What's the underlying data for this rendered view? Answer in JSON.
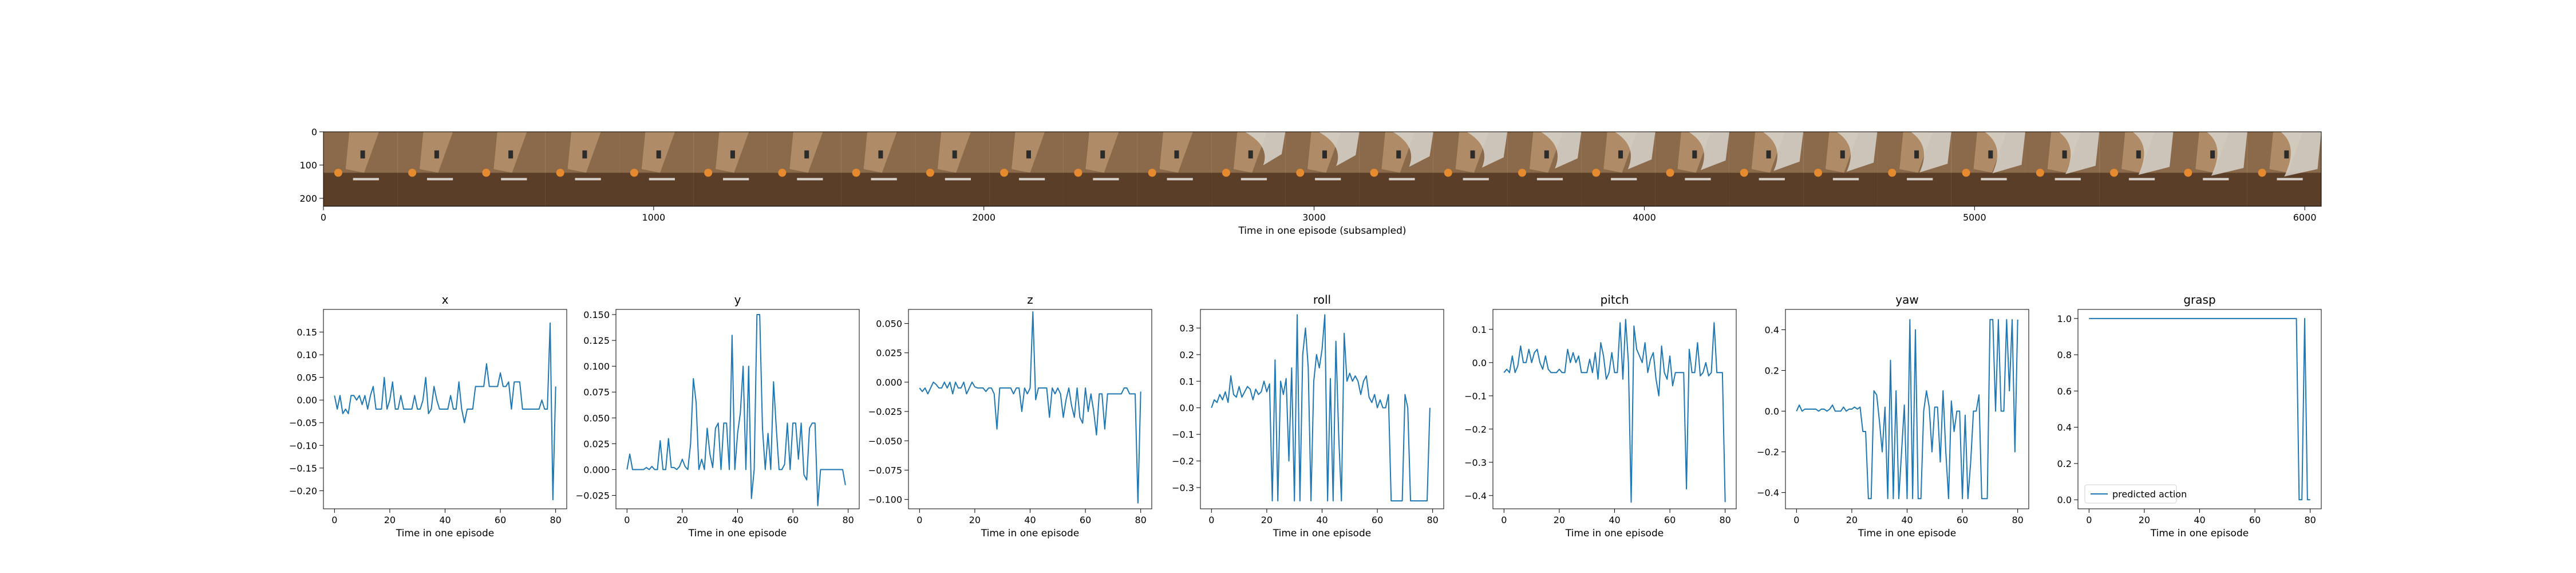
{
  "colors": {
    "series": "#1f77b4",
    "axes": "#000000",
    "legend_border": "#cccccc"
  },
  "filmstrip": {
    "xlabel": "Time in one episode (subsampled)",
    "xticks": [
      0,
      1000,
      2000,
      3000,
      4000,
      5000,
      6000
    ],
    "yticks": [
      0,
      100,
      200
    ],
    "xlim": [
      0,
      6050
    ],
    "ylim": [
      0,
      224
    ],
    "frame_count": 27,
    "frame_palette": [
      "#8a6a4a",
      "#5b3e27",
      "#c9a27c",
      "#e58a2e",
      "#2b2b2b",
      "#d8d3cc"
    ]
  },
  "chart_data": [
    {
      "type": "line",
      "title": "x",
      "xlabel": "Time in one episode",
      "xlim": [
        -4,
        84
      ],
      "ylim": [
        -0.24,
        0.2
      ],
      "xticks": [
        0,
        20,
        40,
        60,
        80
      ],
      "yticks": [
        -0.2,
        -0.15,
        -0.1,
        -0.05,
        0.0,
        0.05,
        0.1,
        0.15
      ],
      "ytick_labels": [
        "−0.20",
        "−0.15",
        "−0.10",
        "−0.05",
        "0.00",
        "0.05",
        "0.10",
        "0.15"
      ],
      "y": [
        0.01,
        -0.02,
        0.01,
        -0.03,
        -0.02,
        -0.03,
        0.01,
        0.01,
        0.0,
        0.01,
        -0.01,
        0.01,
        -0.02,
        0.01,
        0.03,
        -0.02,
        -0.02,
        -0.02,
        0.05,
        -0.02,
        0.0,
        0.04,
        -0.02,
        -0.02,
        0.01,
        -0.02,
        -0.02,
        -0.02,
        -0.02,
        0.01,
        -0.02,
        -0.02,
        0.0,
        0.05,
        -0.03,
        -0.02,
        0.03,
        0.0,
        -0.02,
        -0.02,
        -0.02,
        -0.02,
        0.01,
        -0.02,
        -0.02,
        0.04,
        -0.02,
        -0.05,
        -0.02,
        -0.02,
        -0.02,
        0.03,
        0.03,
        0.03,
        0.03,
        0.08,
        0.03,
        0.03,
        0.03,
        0.03,
        0.06,
        0.03,
        0.03,
        0.04,
        -0.02,
        0.04,
        0.04,
        0.04,
        -0.02,
        -0.02,
        -0.02,
        -0.02,
        -0.02,
        -0.02,
        -0.02,
        0.0,
        -0.02,
        -0.02,
        0.17,
        -0.22,
        0.03
      ]
    },
    {
      "type": "line",
      "title": "y",
      "xlabel": "Time in one episode",
      "xlim": [
        -4,
        84
      ],
      "ylim": [
        -0.038,
        0.155
      ],
      "xticks": [
        0,
        20,
        40,
        60,
        80
      ],
      "yticks": [
        -0.025,
        0.0,
        0.025,
        0.05,
        0.075,
        0.1,
        0.125,
        0.15
      ],
      "ytick_labels": [
        "−0.025",
        "0.000",
        "0.025",
        "0.050",
        "0.075",
        "0.100",
        "0.125",
        "0.150"
      ],
      "y": [
        0.0,
        0.015,
        0.0,
        0.0,
        0.0,
        0.0,
        0.0,
        0.002,
        0.0,
        0.003,
        0.0,
        0.0,
        0.028,
        0.0,
        0.0,
        0.03,
        0.002,
        0.002,
        0.0,
        0.003,
        0.01,
        0.003,
        0.0,
        0.025,
        0.088,
        0.065,
        0.0,
        0.01,
        0.0,
        0.04,
        0.015,
        0.002,
        0.04,
        0.045,
        0.0,
        0.045,
        0.045,
        0.0,
        0.13,
        0.0,
        0.035,
        0.055,
        0.1,
        0.0,
        0.1,
        -0.028,
        0.0,
        0.15,
        0.15,
        0.04,
        0.0,
        0.035,
        0.0,
        0.085,
        0.04,
        0.0,
        0.0,
        0.005,
        0.045,
        0.0,
        0.045,
        0.045,
        0.01,
        0.045,
        -0.005,
        -0.01,
        0.04,
        0.045,
        0.045,
        -0.035,
        0.0,
        0.0,
        0.0,
        0.0,
        0.0,
        0.0,
        0.0,
        0.0,
        0.0,
        -0.015
      ]
    },
    {
      "type": "line",
      "title": "z",
      "xlabel": "Time in one episode",
      "xlim": [
        -4,
        84
      ],
      "ylim": [
        -0.108,
        0.062
      ],
      "xticks": [
        0,
        20,
        40,
        60,
        80
      ],
      "yticks": [
        -0.1,
        -0.075,
        -0.05,
        -0.025,
        0.0,
        0.025,
        0.05
      ],
      "ytick_labels": [
        "−0.100",
        "−0.075",
        "−0.050",
        "−0.025",
        "0.000",
        "0.025",
        "0.050"
      ],
      "y": [
        -0.005,
        -0.008,
        -0.005,
        -0.01,
        -0.005,
        0.0,
        -0.002,
        -0.005,
        -0.005,
        0.0,
        -0.005,
        0.0,
        -0.01,
        0.0,
        -0.005,
        -0.005,
        0.0,
        -0.01,
        -0.005,
        0.0,
        -0.004,
        -0.005,
        -0.005,
        -0.005,
        -0.008,
        -0.005,
        -0.005,
        -0.01,
        -0.04,
        -0.005,
        -0.005,
        -0.005,
        -0.005,
        -0.005,
        -0.01,
        -0.005,
        -0.005,
        -0.025,
        -0.005,
        -0.01,
        -0.005,
        0.06,
        -0.015,
        -0.005,
        -0.005,
        -0.005,
        -0.005,
        -0.03,
        -0.005,
        -0.01,
        -0.005,
        -0.01,
        -0.03,
        -0.015,
        -0.005,
        -0.02,
        -0.03,
        -0.005,
        -0.03,
        -0.035,
        -0.005,
        -0.025,
        -0.01,
        -0.025,
        -0.045,
        -0.01,
        -0.01,
        -0.04,
        -0.01,
        -0.01,
        -0.01,
        -0.01,
        -0.01,
        -0.01,
        -0.005,
        -0.005,
        -0.01,
        -0.01,
        -0.01,
        -0.103,
        -0.008
      ]
    },
    {
      "type": "line",
      "title": "roll",
      "xlabel": "Time in one episode",
      "xlim": [
        -4,
        84
      ],
      "ylim": [
        -0.38,
        0.37
      ],
      "xticks": [
        0,
        20,
        40,
        60,
        80
      ],
      "yticks": [
        -0.3,
        -0.2,
        -0.1,
        0.0,
        0.1,
        0.2,
        0.3
      ],
      "ytick_labels": [
        "−0.3",
        "−0.2",
        "−0.1",
        "0.0",
        "0.1",
        "0.2",
        "0.3"
      ],
      "y": [
        0.0,
        0.03,
        0.02,
        0.05,
        0.03,
        0.06,
        0.02,
        0.12,
        0.05,
        0.04,
        0.08,
        0.04,
        0.06,
        0.08,
        0.07,
        0.03,
        0.07,
        0.05,
        0.06,
        0.1,
        0.06,
        0.09,
        -0.35,
        0.18,
        -0.35,
        0.1,
        0.05,
        0.11,
        -0.2,
        0.15,
        -0.35,
        0.35,
        -0.35,
        0.2,
        0.3,
        0.15,
        -0.35,
        0.1,
        0.2,
        0.15,
        0.22,
        0.35,
        -0.35,
        0.11,
        -0.35,
        0.25,
        -0.1,
        -0.35,
        0.28,
        0.1,
        0.13,
        0.1,
        0.12,
        0.1,
        0.05,
        0.1,
        0.12,
        0.04,
        0.02,
        0.05,
        0.0,
        0.03,
        0.0,
        0.0,
        0.05,
        -0.35,
        -0.35,
        -0.35,
        -0.35,
        -0.35,
        0.05,
        0.0,
        -0.35,
        -0.35,
        -0.35,
        -0.35,
        -0.35,
        -0.35,
        -0.35,
        0.0
      ]
    },
    {
      "type": "line",
      "title": "pitch",
      "xlabel": "Time in one episode",
      "xlim": [
        -4,
        84
      ],
      "ylim": [
        -0.44,
        0.16
      ],
      "xticks": [
        0,
        20,
        40,
        60,
        80
      ],
      "yticks": [
        -0.4,
        -0.3,
        -0.2,
        -0.1,
        0.0,
        0.1
      ],
      "ytick_labels": [
        "−0.4",
        "−0.3",
        "−0.2",
        "−0.1",
        "0.0",
        "0.1"
      ],
      "y": [
        -0.03,
        -0.02,
        -0.03,
        0.02,
        -0.03,
        -0.01,
        0.05,
        0.0,
        0.0,
        0.04,
        0.0,
        0.03,
        0.04,
        0.0,
        -0.02,
        0.02,
        -0.02,
        -0.03,
        -0.03,
        -0.03,
        -0.02,
        -0.03,
        -0.03,
        0.04,
        0.0,
        0.03,
        0.0,
        0.02,
        -0.03,
        -0.03,
        -0.03,
        0.01,
        -0.03,
        0.03,
        -0.05,
        0.06,
        0.02,
        -0.05,
        -0.03,
        0.03,
        -0.03,
        -0.03,
        0.12,
        -0.05,
        0.13,
        0.0,
        -0.42,
        0.11,
        0.04,
        0.02,
        0.0,
        0.06,
        -0.03,
        0.01,
        0.03,
        -0.05,
        -0.1,
        0.05,
        -0.03,
        -0.05,
        0.02,
        -0.07,
        -0.03,
        -0.03,
        -0.03,
        -0.03,
        -0.38,
        0.04,
        -0.03,
        -0.03,
        0.06,
        -0.04,
        -0.03,
        0.0,
        -0.04,
        -0.03,
        0.12,
        -0.03,
        -0.03,
        -0.03,
        -0.42
      ]
    },
    {
      "type": "line",
      "title": "yaw",
      "xlabel": "Time in one episode",
      "xlim": [
        -4,
        84
      ],
      "ylim": [
        -0.48,
        0.5
      ],
      "xticks": [
        0,
        20,
        40,
        60,
        80
      ],
      "yticks": [
        -0.4,
        -0.2,
        0.0,
        0.2,
        0.4
      ],
      "ytick_labels": [
        "−0.4",
        "−0.2",
        "0.0",
        "0.2",
        "0.4"
      ],
      "y": [
        0.0,
        0.03,
        0.0,
        0.01,
        0.01,
        0.01,
        0.01,
        0.01,
        0.0,
        0.01,
        0.01,
        0.0,
        0.01,
        0.03,
        0.0,
        0.0,
        0.0,
        0.02,
        0.0,
        0.01,
        0.01,
        0.02,
        0.01,
        0.02,
        -0.1,
        -0.1,
        -0.43,
        -0.43,
        0.1,
        0.08,
        -0.05,
        -0.2,
        0.02,
        -0.43,
        0.25,
        -0.43,
        0.1,
        -0.43,
        -0.2,
        0.03,
        -0.43,
        0.45,
        -0.43,
        0.4,
        -0.43,
        -0.43,
        0.0,
        0.1,
        0.02,
        -0.2,
        0.02,
        0.02,
        -0.25,
        0.1,
        -0.2,
        -0.43,
        0.05,
        -0.1,
        0.0,
        0.0,
        -0.43,
        -0.02,
        -0.43,
        -0.25,
        0.0,
        0.0,
        0.08,
        -0.43,
        -0.43,
        -0.43,
        0.45,
        0.45,
        0.0,
        0.45,
        0.0,
        0.0,
        0.45,
        0.1,
        0.45,
        -0.2,
        0.45
      ]
    },
    {
      "type": "line",
      "title": "grasp",
      "xlabel": "Time in one episode",
      "xlim": [
        -4,
        84
      ],
      "ylim": [
        -0.05,
        1.05
      ],
      "xticks": [
        0,
        20,
        40,
        60,
        80
      ],
      "yticks": [
        0.0,
        0.2,
        0.4,
        0.6,
        0.8,
        1.0
      ],
      "ytick_labels": [
        "0.0",
        "0.2",
        "0.4",
        "0.6",
        "0.8",
        "1.0"
      ],
      "legend": {
        "label": "predicted action",
        "loc": "lower-left"
      },
      "y": [
        1,
        1,
        1,
        1,
        1,
        1,
        1,
        1,
        1,
        1,
        1,
        1,
        1,
        1,
        1,
        1,
        1,
        1,
        1,
        1,
        1,
        1,
        1,
        1,
        1,
        1,
        1,
        1,
        1,
        1,
        1,
        1,
        1,
        1,
        1,
        1,
        1,
        1,
        1,
        1,
        1,
        1,
        1,
        1,
        1,
        1,
        1,
        1,
        1,
        1,
        1,
        1,
        1,
        1,
        1,
        1,
        1,
        1,
        1,
        1,
        1,
        1,
        1,
        1,
        1,
        1,
        1,
        1,
        1,
        1,
        1,
        1,
        1,
        1,
        1,
        1,
        0,
        0,
        1,
        0,
        0
      ]
    }
  ]
}
